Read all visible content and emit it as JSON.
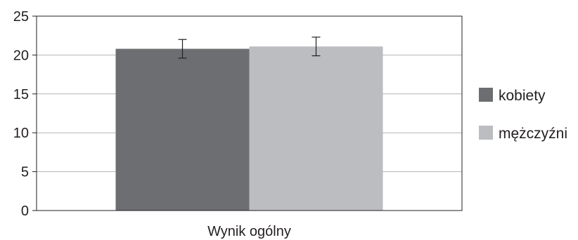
{
  "chart_data": {
    "type": "bar",
    "categories": [
      "Wynik ogólny"
    ],
    "series": [
      {
        "name": "kobiety",
        "values": [
          20.8
        ],
        "error": [
          1.2
        ],
        "color": "#6d6e71"
      },
      {
        "name": "mężczyźni",
        "values": [
          21.1
        ],
        "error": [
          1.2
        ],
        "color": "#bcbdc0"
      }
    ],
    "title": "",
    "xlabel": "",
    "ylabel": "",
    "ylim": [
      0,
      25
    ],
    "yticks": [
      0,
      5,
      10,
      15,
      20,
      25
    ],
    "grid": true,
    "legend": "right"
  }
}
